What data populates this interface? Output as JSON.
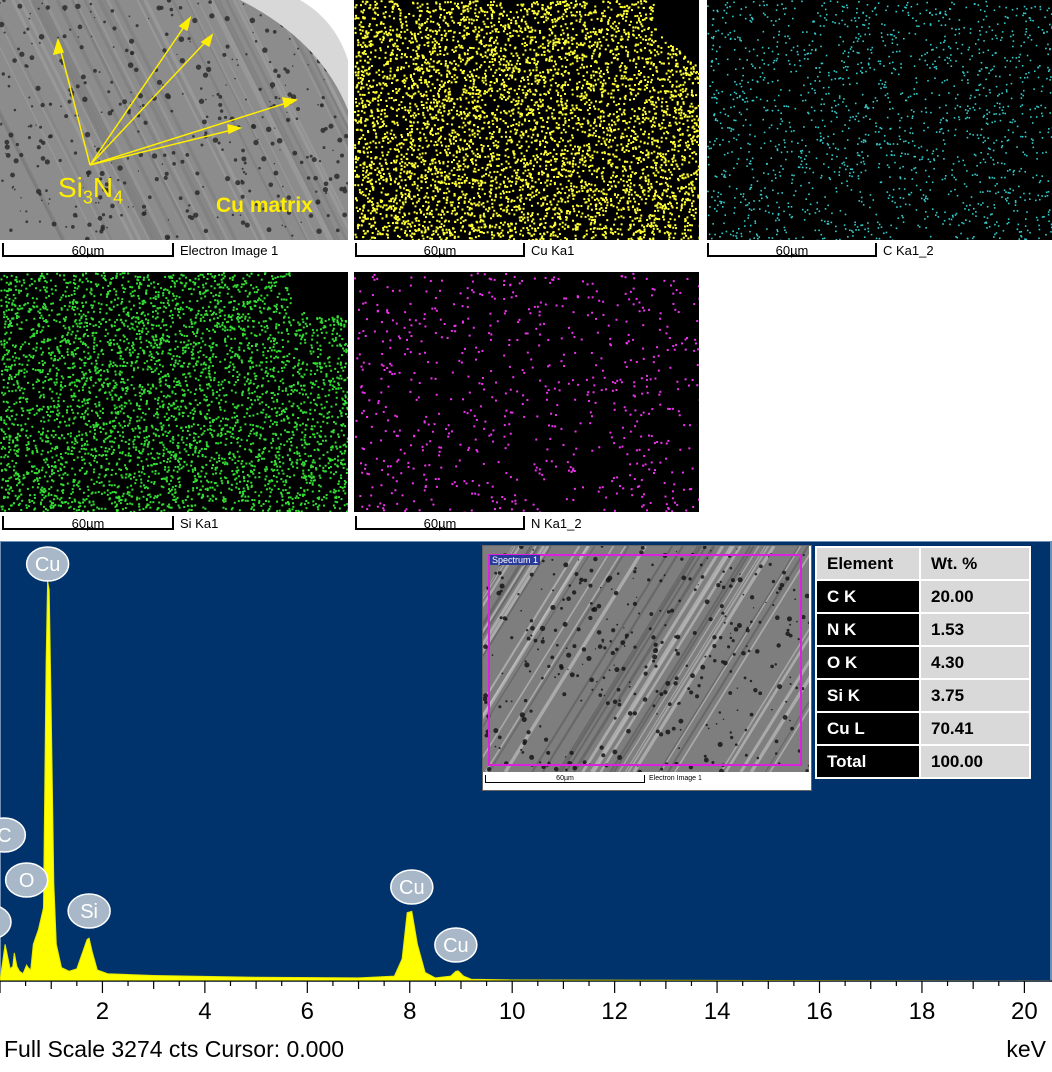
{
  "maps": [
    {
      "id": "electron",
      "caption": "Electron Image 1",
      "scale": "60µm",
      "color": "#9a9a9a"
    },
    {
      "id": "cu",
      "caption": "Cu Ka1",
      "scale": "60µm",
      "color": "#ffff33"
    },
    {
      "id": "c",
      "caption": "C Ka1_2",
      "scale": "60µm",
      "color": "#33cccc"
    },
    {
      "id": "si",
      "caption": "Si Ka1",
      "scale": "60µm",
      "color": "#33dd33"
    },
    {
      "id": "n",
      "caption": "N Ka1_2",
      "scale": "60µm",
      "color": "#ee33ee"
    }
  ],
  "annotations": {
    "phase_label": "Si3N4",
    "phase_base": "Si",
    "phase_sub1": "3",
    "phase_mid": "N",
    "phase_sub2": "4",
    "matrix_label": "Cu matrix"
  },
  "inset": {
    "title": "Spectrum 1",
    "scale": "60µm",
    "caption": "Electron Image 1"
  },
  "table": {
    "header": {
      "element": "Element",
      "wt": "Wt. %"
    },
    "rows": [
      {
        "element": "C K",
        "wt": "20.00"
      },
      {
        "element": "N K",
        "wt": "1.53"
      },
      {
        "element": "O K",
        "wt": "4.30"
      },
      {
        "element": "Si K",
        "wt": "3.75"
      },
      {
        "element": "Cu L",
        "wt": "70.41"
      },
      {
        "element": "Total",
        "wt": "100.00"
      }
    ]
  },
  "footer": {
    "status": "Full Scale 3274 cts Cursor: 0.000",
    "unit": "keV"
  },
  "colors": {
    "spectrum_bg": "#00336b",
    "spectrum_fill": "#ffff00",
    "peak_label_bg": "#a8b8c8"
  },
  "chart_data": {
    "type": "area",
    "xlabel": "keV",
    "xlim": [
      0,
      20.5
    ],
    "xticks": [
      2,
      4,
      6,
      8,
      10,
      12,
      14,
      16,
      18,
      20
    ],
    "full_scale": 3274,
    "x": [
      0.0,
      0.1,
      0.2,
      0.25,
      0.28,
      0.33,
      0.38,
      0.45,
      0.52,
      0.55,
      0.6,
      0.65,
      0.75,
      0.85,
      0.9,
      0.93,
      0.96,
      1.0,
      1.05,
      1.1,
      1.2,
      1.35,
      1.5,
      1.6,
      1.7,
      1.74,
      1.8,
      1.9,
      2.1,
      3.0,
      5.0,
      7.0,
      7.7,
      7.85,
      7.95,
      8.04,
      8.15,
      8.3,
      8.5,
      8.8,
      8.9,
      8.95,
      9.05,
      9.2,
      10.0,
      20.5
    ],
    "y": [
      0,
      300,
      100,
      120,
      230,
      120,
      80,
      60,
      130,
      110,
      90,
      300,
      420,
      600,
      2600,
      3274,
      3200,
      2200,
      800,
      300,
      110,
      80,
      100,
      220,
      340,
      350,
      240,
      90,
      60,
      45,
      30,
      25,
      40,
      180,
      560,
      570,
      300,
      70,
      25,
      40,
      80,
      82,
      40,
      15,
      8,
      0
    ],
    "peak_labels": [
      {
        "label": "Cu",
        "x": 0.93
      },
      {
        "label": "C",
        "x": 0.28
      },
      {
        "label": "O",
        "x": 0.52
      },
      {
        "label": "N",
        "x": 0.39
      },
      {
        "label": "Si",
        "x": 1.74
      },
      {
        "label": "Cu",
        "x": 8.04
      },
      {
        "label": "Cu",
        "x": 8.9
      }
    ]
  }
}
